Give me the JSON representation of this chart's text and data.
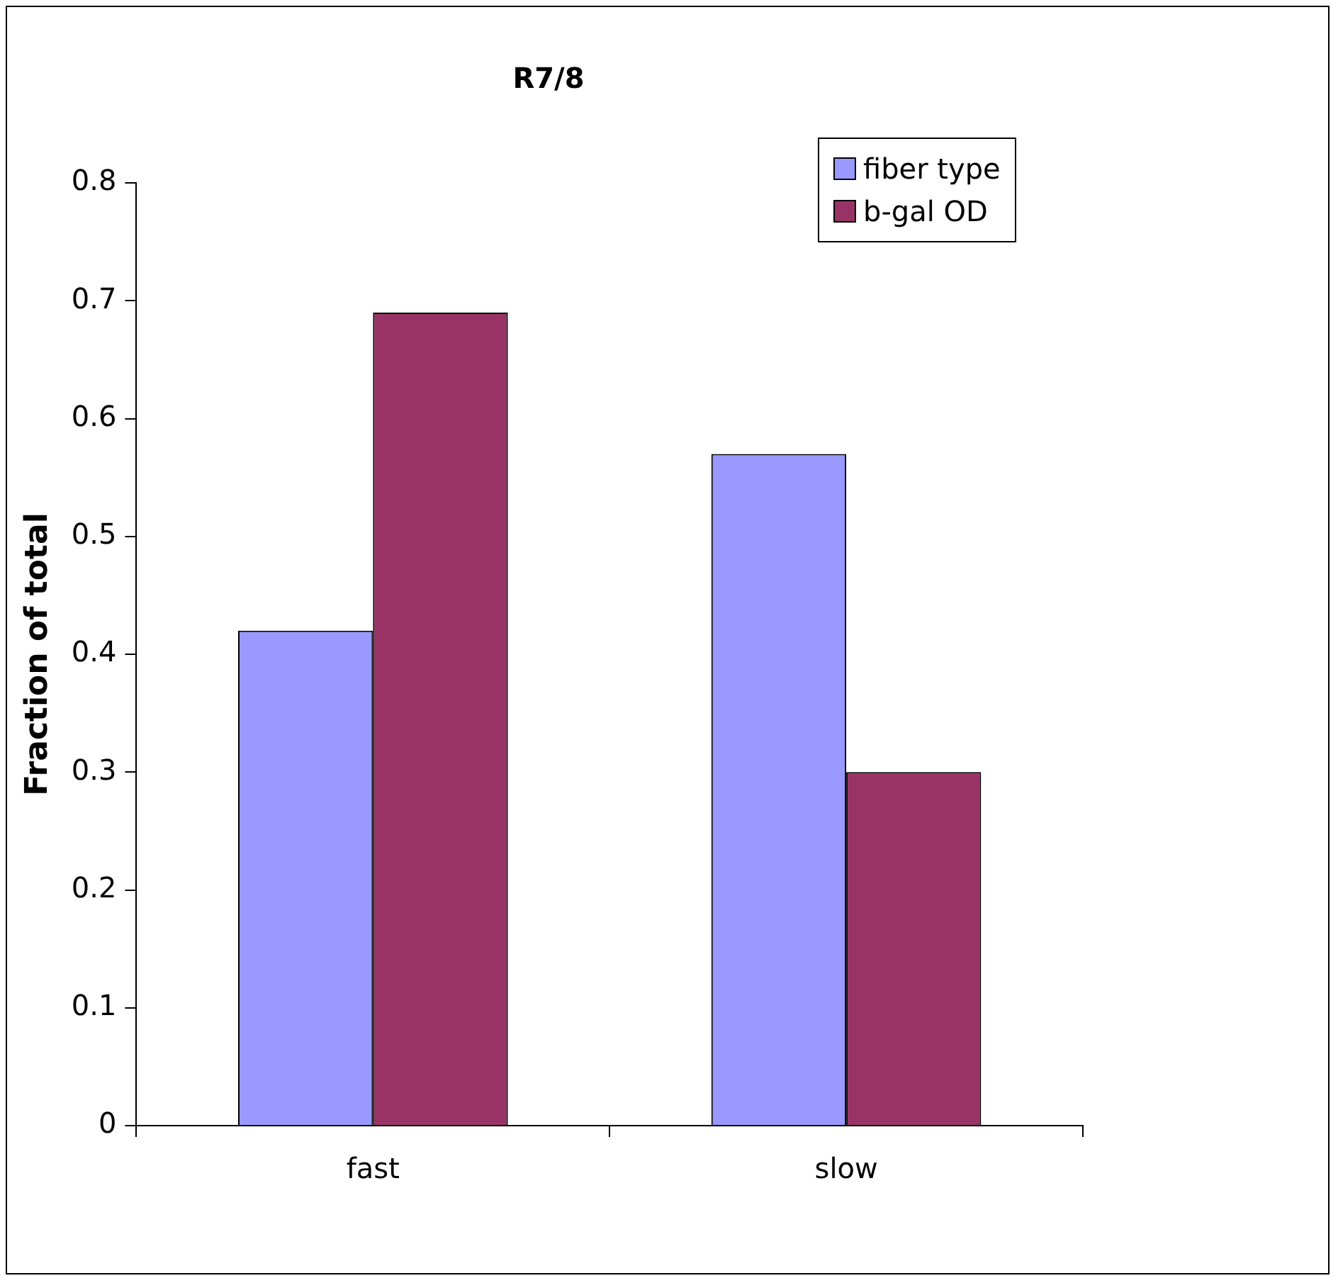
{
  "chart_data": {
    "type": "bar",
    "title": "R7/8",
    "ylabel": "Fraction of total",
    "categories": [
      "fast",
      "slow"
    ],
    "series": [
      {
        "name": "fiber type",
        "color": "#9999ff",
        "values": [
          0.42,
          0.57
        ]
      },
      {
        "name": "b-gal OD",
        "color": "#993366",
        "values": [
          0.69,
          0.3
        ]
      }
    ],
    "ylim": [
      0,
      0.8
    ],
    "yticks": [
      0,
      0.1,
      0.2,
      0.3,
      0.4,
      0.5,
      0.6,
      0.7,
      0.8
    ],
    "grid": false,
    "legend": "top right"
  }
}
